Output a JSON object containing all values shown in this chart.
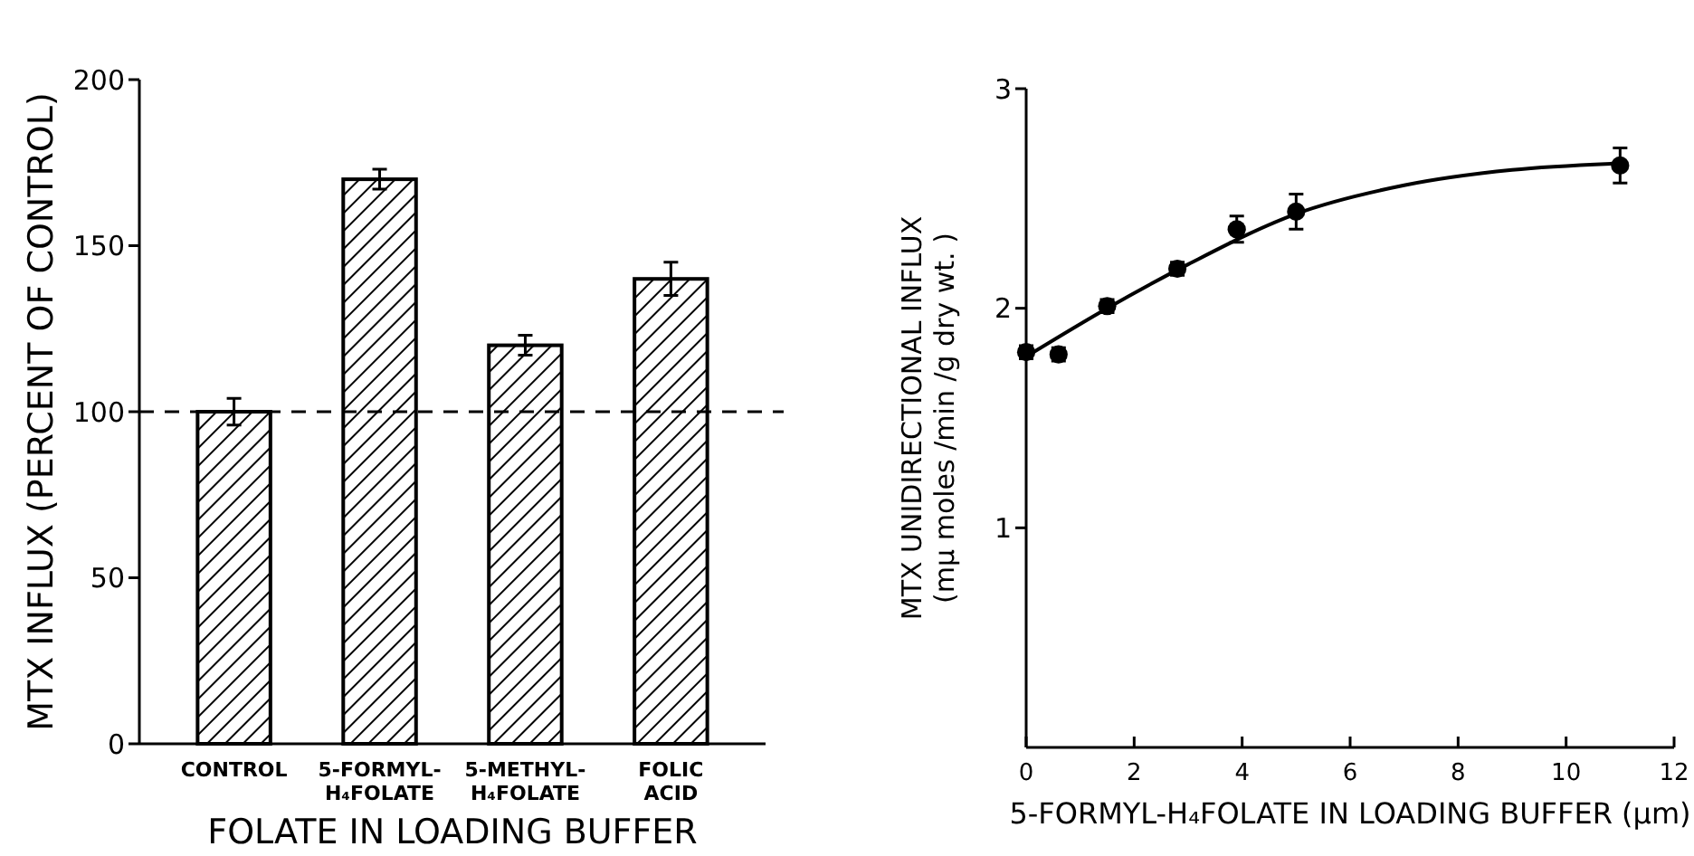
{
  "chart_data": [
    {
      "type": "bar",
      "xlabel": "FOLATE IN LOADING BUFFER",
      "ylabel": "MTX INFLUX (PERCENT OF CONTROL)",
      "categories": [
        "CONTROL",
        "5-FORMYL- H₄FOLATE",
        "5-METHYL- H₄FOLATE",
        "FOLIC ACID"
      ],
      "values": [
        100,
        170,
        120,
        140
      ],
      "errors": [
        4,
        3,
        3,
        5
      ],
      "color": "#000000",
      "ylim": [
        0,
        200
      ],
      "yticks": [
        0,
        50,
        100,
        150,
        200
      ],
      "grid": false,
      "ref_lines": [
        {
          "axis": "y",
          "value": 100,
          "line_style": "dashed",
          "color": "#000000"
        }
      ]
    },
    {
      "type": "scatter",
      "xlabel": "5-FORMYL-H₄FOLATE IN LOADING BUFFER (μm)",
      "ylabel": "MTX UNIDIRECTIONAL INFLUX\n(mμ moles /min /g dry wt. )",
      "xlim": [
        0,
        12
      ],
      "xticks": [
        0,
        2,
        4,
        6,
        8,
        10,
        12
      ],
      "ylim": [
        0,
        3
      ],
      "yticks": [
        1,
        2,
        3
      ],
      "grid": false,
      "series": [
        {
          "color": "#000000",
          "marker": "circle",
          "x": [
            0,
            0.6,
            1.5,
            2.8,
            3.9,
            5,
            11
          ],
          "values": [
            1.8,
            1.79,
            2.01,
            2.18,
            2.36,
            2.44,
            2.65
          ],
          "errors": [
            0.03,
            0.03,
            0.03,
            0.03,
            0.06,
            0.08,
            0.08
          ]
        },
        {
          "type": "line",
          "color": "#000000",
          "marker": "none",
          "line_style": "solid",
          "x": [
            0,
            1.5,
            3,
            5,
            7,
            9,
            11
          ],
          "values": [
            1.78,
            2.0,
            2.2,
            2.43,
            2.56,
            2.63,
            2.66
          ]
        }
      ]
    }
  ]
}
